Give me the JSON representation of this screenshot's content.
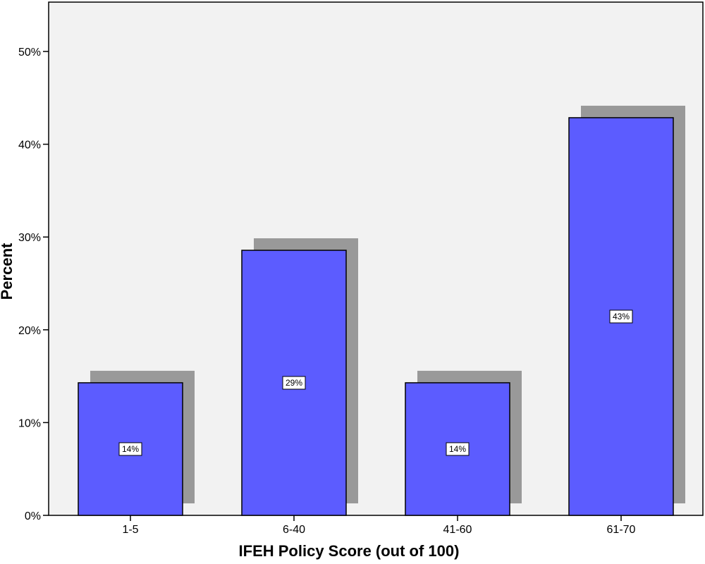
{
  "chart_data": {
    "type": "bar",
    "categories": [
      "1-5",
      "6-40",
      "41-60",
      "61-70"
    ],
    "values": [
      14.29,
      28.57,
      14.29,
      42.86
    ],
    "data_labels": [
      "14%",
      "29%",
      "14%",
      "43%"
    ],
    "title": "",
    "xlabel": "IFEH Policy Score (out of 100)",
    "ylabel": "Percent",
    "ylim": [
      0,
      50
    ],
    "yticks": [
      0,
      10,
      20,
      30,
      40,
      50
    ],
    "ytick_labels": [
      "0%",
      "10%",
      "20%",
      "30%",
      "40%",
      "50%"
    ],
    "grid": false,
    "legend": "none",
    "bar_color": "#5C5CFF",
    "shadow_color": "#999999",
    "plot_background": "#F2F2F2"
  }
}
